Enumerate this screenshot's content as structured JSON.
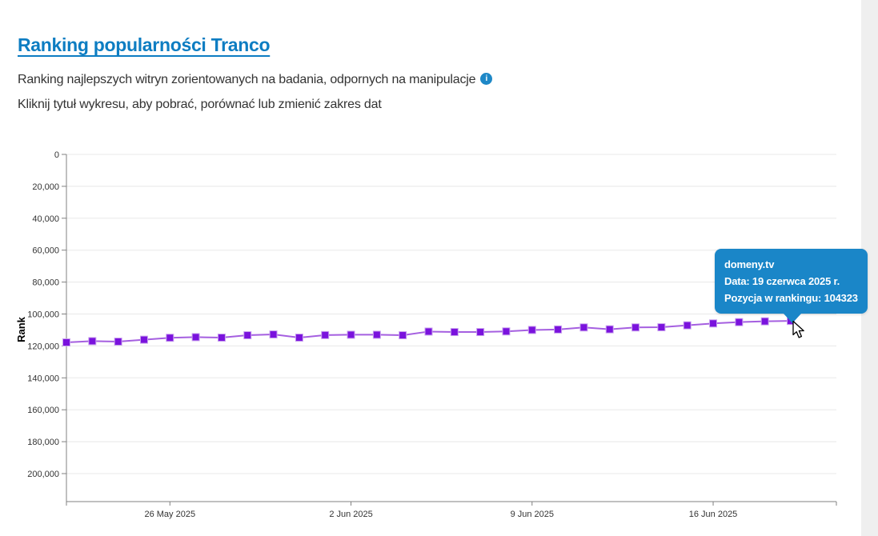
{
  "header": {
    "title": "Ranking popularności Tranco",
    "subtitle": "Ranking najlepszych witryn zorientowanych na badania, odpornych na manipulacje",
    "info_icon": "i",
    "instruction": "Kliknij tytuł wykresu, aby pobrać, porównać lub zmienić zakres dat"
  },
  "tooltip": {
    "site": "domeny.tv",
    "date_line": "Data: 19 czerwca 2025 r.",
    "rank_line": "Pozycja w rankingu: 104323",
    "bg_color": "#1a86c8"
  },
  "chart_data": {
    "type": "line",
    "series_name": "domeny.tv",
    "title": "",
    "xlabel": "",
    "ylabel": "Rank",
    "y_axis_inverted": true,
    "ylim": [
      0,
      200000
    ],
    "grid": true,
    "yticks": [
      0,
      20000,
      40000,
      60000,
      80000,
      100000,
      120000,
      140000,
      160000,
      180000,
      200000
    ],
    "ytick_labels": [
      "0",
      "20,000",
      "40,000",
      "60,000",
      "80,000",
      "100,000",
      "120,000",
      "140,000",
      "160,000",
      "180,000",
      "200,000"
    ],
    "xticks": [
      {
        "index": 4,
        "label": "26 May 2025"
      },
      {
        "index": 11,
        "label": "2 Jun 2025"
      },
      {
        "index": 18,
        "label": "9 Jun 2025"
      },
      {
        "index": 25,
        "label": "16 Jun 2025"
      }
    ],
    "dates": [
      "2025-05-22",
      "2025-05-23",
      "2025-05-24",
      "2025-05-25",
      "2025-05-26",
      "2025-05-27",
      "2025-05-28",
      "2025-05-29",
      "2025-05-30",
      "2025-05-31",
      "2025-06-01",
      "2025-06-02",
      "2025-06-03",
      "2025-06-04",
      "2025-06-05",
      "2025-06-06",
      "2025-06-07",
      "2025-06-08",
      "2025-06-09",
      "2025-06-10",
      "2025-06-11",
      "2025-06-12",
      "2025-06-13",
      "2025-06-14",
      "2025-06-15",
      "2025-06-16",
      "2025-06-17",
      "2025-06-18",
      "2025-06-19"
    ],
    "values": [
      117800,
      117000,
      117300,
      116100,
      114900,
      114500,
      114800,
      113300,
      112800,
      114800,
      113200,
      113000,
      113000,
      113300,
      111000,
      111300,
      111300,
      110900,
      110000,
      109700,
      108400,
      109600,
      108400,
      108300,
      107100,
      105900,
      105100,
      104600,
      104323
    ],
    "highlighted_point": {
      "index": 28,
      "value": 104323,
      "date_label": "19 czerwca 2025 r."
    },
    "line_color": "#a55fe0",
    "marker_color": "#7a12dd",
    "marker_halo_color": "#c9a2ef",
    "axis_color": "#808080",
    "grid_color": "#e8e8e8"
  }
}
